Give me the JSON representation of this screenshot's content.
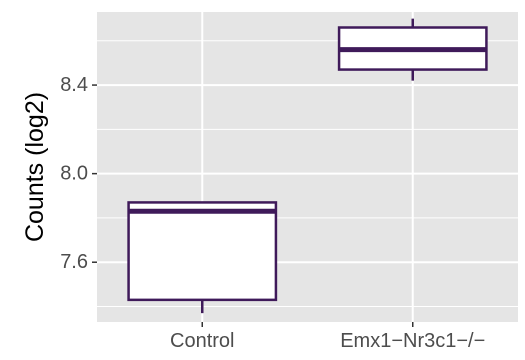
{
  "chart_data": {
    "type": "boxplot",
    "xlabel": "",
    "ylabel": "Counts (log2)",
    "categories": [
      "Control",
      "Emx1−Nr3c1−/−"
    ],
    "boxes": [
      {
        "category": "Control",
        "whisker_low": 7.37,
        "q1": 7.43,
        "median": 7.83,
        "q3": 7.87,
        "whisker_high": 7.87
      },
      {
        "category": "Emx1−Nr3c1−/−",
        "whisker_low": 8.42,
        "q1": 8.47,
        "median": 8.56,
        "q3": 8.66,
        "whisker_high": 8.7
      }
    ],
    "yticks": [
      7.6,
      8.0,
      8.4
    ],
    "ytick_labels": [
      "7.6",
      "8.0",
      "8.4"
    ],
    "ylim": [
      7.33,
      8.73
    ],
    "grid": true,
    "legend": "none",
    "colors": {
      "panel_background": "#e5e5e5",
      "grid": "#ffffff",
      "box_fill": "#ffffff",
      "box_stroke": "#3f1a5a",
      "tick_text": "#4d4d4d",
      "axis_title": "#000000"
    }
  }
}
